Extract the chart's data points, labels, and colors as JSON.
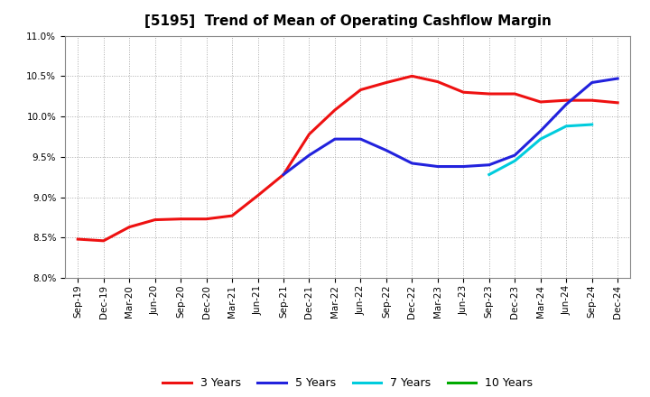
{
  "title": "[5195]  Trend of Mean of Operating Cashflow Margin",
  "x_labels": [
    "Sep-19",
    "Dec-19",
    "Mar-20",
    "Jun-20",
    "Sep-20",
    "Dec-20",
    "Mar-21",
    "Jun-21",
    "Sep-21",
    "Dec-21",
    "Mar-22",
    "Jun-22",
    "Sep-22",
    "Dec-22",
    "Mar-23",
    "Jun-23",
    "Sep-23",
    "Dec-23",
    "Mar-24",
    "Jun-24",
    "Sep-24",
    "Dec-24"
  ],
  "y_min": 8.0,
  "y_max": 11.0,
  "y_ticks": [
    8.0,
    8.5,
    9.0,
    9.5,
    10.0,
    10.5,
    11.0
  ],
  "series_3y": {
    "label": "3 Years",
    "color": "#EE1111",
    "data_x": [
      0,
      1,
      2,
      3,
      4,
      5,
      6,
      7,
      8,
      9,
      10,
      11,
      12,
      13,
      14,
      15,
      16,
      17,
      18,
      19,
      20,
      21
    ],
    "data_y": [
      8.48,
      8.46,
      8.63,
      8.72,
      8.73,
      8.73,
      8.77,
      9.02,
      9.28,
      9.78,
      10.08,
      10.33,
      10.42,
      10.5,
      10.43,
      10.3,
      10.28,
      10.28,
      10.18,
      10.2,
      10.2,
      10.17
    ]
  },
  "series_5y": {
    "label": "5 Years",
    "color": "#2222DD",
    "data_x": [
      8,
      9,
      10,
      11,
      12,
      13,
      14,
      15,
      16,
      17,
      18,
      19,
      20,
      21
    ],
    "data_y": [
      9.28,
      9.52,
      9.72,
      9.72,
      9.58,
      9.42,
      9.38,
      9.38,
      9.4,
      9.52,
      9.82,
      10.15,
      10.42,
      10.47
    ]
  },
  "series_7y": {
    "label": "7 Years",
    "color": "#00CCDD",
    "data_x": [
      16,
      17,
      18,
      19,
      20
    ],
    "data_y": [
      9.28,
      9.45,
      9.72,
      9.88,
      9.9
    ]
  },
  "series_10y": {
    "label": "10 Years",
    "color": "#00AA00",
    "data_x": [],
    "data_y": []
  },
  "background_color": "#ffffff",
  "grid_color": "#aaaaaa",
  "linewidth": 2.2,
  "title_fontsize": 11,
  "tick_fontsize": 7.5,
  "legend_fontsize": 9
}
